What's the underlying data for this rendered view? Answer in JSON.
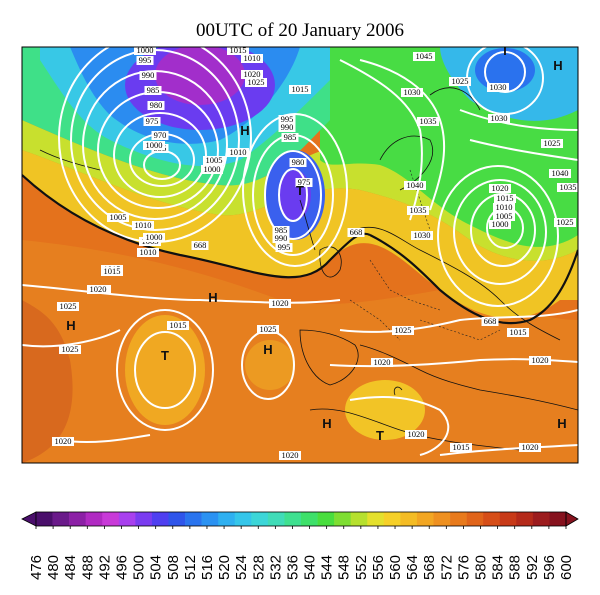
{
  "title": "00UTC of 20 January 2006",
  "pressure_systems": [
    {
      "type": "H",
      "label": "H"
    },
    {
      "type": "H",
      "label": "H"
    },
    {
      "type": "H",
      "label": "H"
    },
    {
      "type": "H",
      "label": "H"
    },
    {
      "type": "H",
      "label": "H"
    },
    {
      "type": "H",
      "label": "H"
    },
    {
      "type": "T",
      "label": "T"
    },
    {
      "type": "T",
      "label": "T"
    },
    {
      "type": "T",
      "label": "T"
    },
    {
      "type": "T",
      "label": "T"
    }
  ],
  "isobar_labels": [
    "1000",
    "995",
    "990",
    "985",
    "980",
    "975",
    "970",
    "995",
    "1015",
    "1010",
    "1020",
    "1025",
    "1015",
    "995",
    "990",
    "985",
    "1010",
    "1005",
    "1000",
    "980",
    "975",
    "985",
    "990",
    "995",
    "1000",
    "1005",
    "1010",
    "1015",
    "1010",
    "1005",
    "1000",
    "668",
    "1015",
    "1020",
    "1025",
    "1045",
    "1030",
    "1025",
    "1030",
    "1040",
    "1035",
    "1035",
    "1030",
    "1025",
    "1040",
    "1035",
    "1030",
    "1020",
    "1015",
    "1010",
    "1005",
    "1000",
    "1025",
    "668",
    "1015",
    "1020",
    "1020",
    "1015",
    "1025",
    "1020",
    "1025",
    "1020",
    "668",
    "1025",
    "1020",
    "1015",
    "1020",
    "1020",
    "1020"
  ],
  "colorbar": {
    "values": [
      "476",
      "480",
      "484",
      "488",
      "492",
      "496",
      "500",
      "504",
      "508",
      "512",
      "516",
      "520",
      "524",
      "528",
      "532",
      "536",
      "540",
      "544",
      "548",
      "552",
      "556",
      "560",
      "564",
      "568",
      "572",
      "576",
      "580",
      "584",
      "588",
      "592",
      "596",
      "600"
    ],
    "colors": [
      "#4a0f6b",
      "#6a1a8a",
      "#8c20a6",
      "#b02ac2",
      "#c83ad8",
      "#a840ee",
      "#7a3cf0",
      "#4f3ff0",
      "#2f55ea",
      "#2a74ee",
      "#2b92f2",
      "#2fb0f0",
      "#35c6ea",
      "#3cd6d8",
      "#40dcb8",
      "#3fe090",
      "#3ee06a",
      "#49de3e",
      "#7ede32",
      "#b6e02e",
      "#e4e02c",
      "#f6d028",
      "#f4bc24",
      "#f2a622",
      "#ee9020",
      "#e87a1c",
      "#e0641a",
      "#d64e18",
      "#c83a18",
      "#b42a1a",
      "#9c1c1e",
      "#86121e"
    ]
  }
}
